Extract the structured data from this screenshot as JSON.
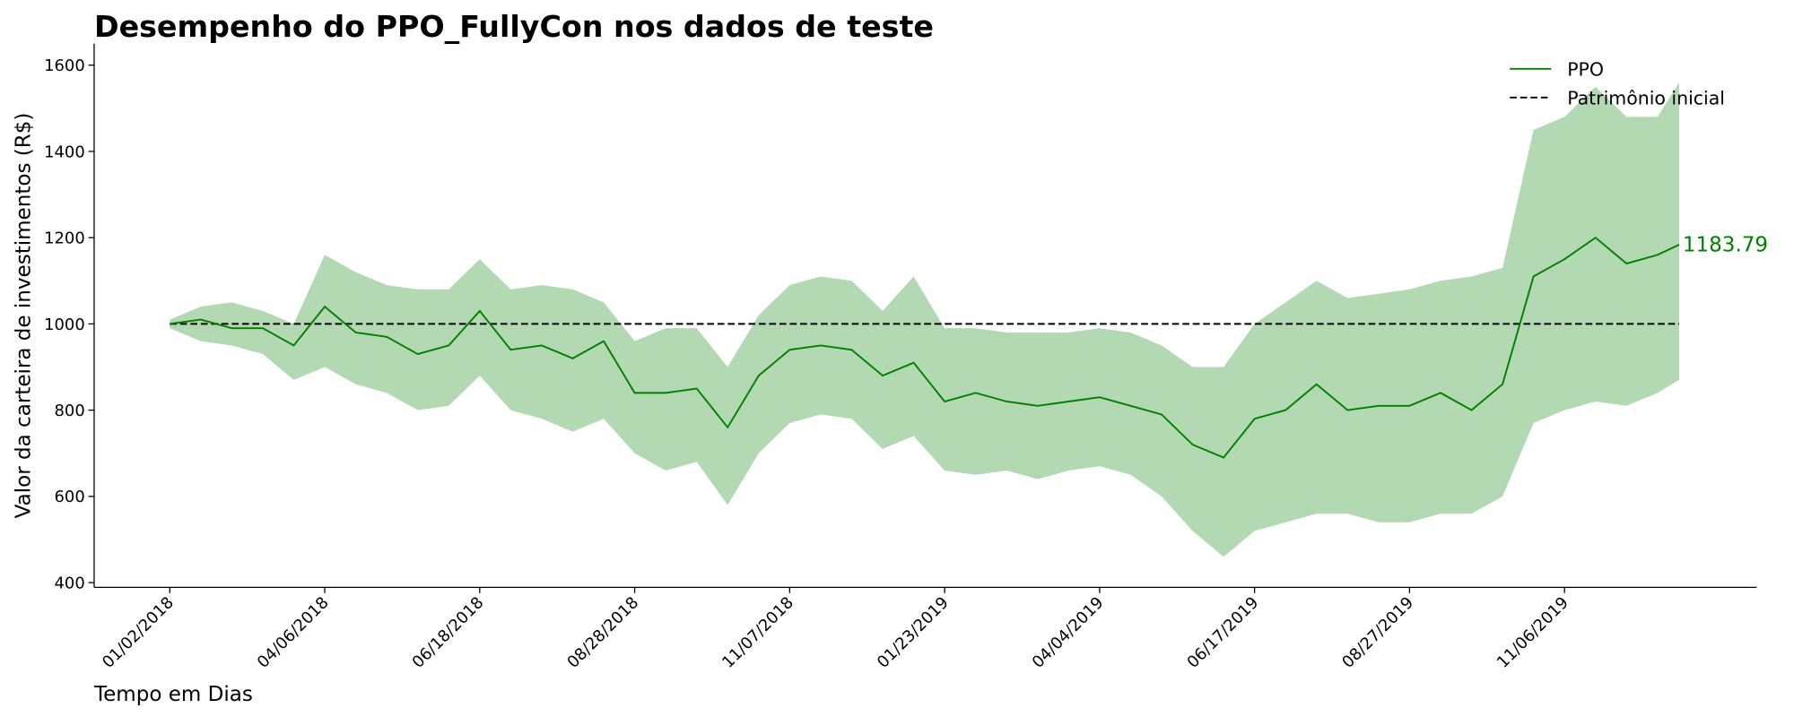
{
  "chart_data": {
    "type": "line",
    "title": "Desempenho do PPO_FullyCon nos dados de teste",
    "xlabel": "Tempo em Dias",
    "ylabel": "Valor da carteira de investimentos (R$)",
    "x": [
      0,
      10,
      20,
      30,
      40,
      50,
      60,
      70,
      80,
      90,
      100,
      110,
      120,
      130,
      140,
      150,
      160,
      170,
      180,
      190,
      200,
      210,
      220,
      230,
      240,
      250,
      260,
      270,
      280,
      290,
      300,
      310,
      320,
      330,
      340,
      350,
      360,
      370,
      380,
      390,
      400,
      410,
      420,
      430,
      440,
      450,
      460,
      470,
      480,
      487
    ],
    "series": [
      {
        "name": "PPO",
        "color": "#008000",
        "values": [
          1000,
          1010,
          990,
          990,
          950,
          1040,
          980,
          970,
          930,
          950,
          1030,
          940,
          950,
          920,
          960,
          840,
          840,
          850,
          760,
          880,
          940,
          950,
          940,
          880,
          910,
          820,
          840,
          820,
          810,
          820,
          830,
          810,
          790,
          720,
          690,
          780,
          800,
          860,
          800,
          810,
          810,
          840,
          800,
          860,
          1110,
          1150,
          1200,
          1140,
          1160,
          1183.79
        ]
      }
    ],
    "band": {
      "color": "#b2d9b2",
      "upper": [
        1010,
        1040,
        1050,
        1030,
        1000,
        1160,
        1120,
        1090,
        1080,
        1080,
        1150,
        1080,
        1090,
        1080,
        1050,
        960,
        990,
        990,
        900,
        1020,
        1090,
        1110,
        1100,
        1030,
        1110,
        990,
        990,
        980,
        980,
        980,
        990,
        980,
        950,
        900,
        900,
        1000,
        1050,
        1100,
        1060,
        1070,
        1080,
        1100,
        1110,
        1130,
        1450,
        1480,
        1550,
        1480,
        1480,
        1560
      ],
      "lower": [
        990,
        960,
        950,
        930,
        870,
        900,
        860,
        840,
        800,
        810,
        880,
        800,
        780,
        750,
        780,
        700,
        660,
        680,
        580,
        700,
        770,
        790,
        780,
        710,
        740,
        660,
        650,
        660,
        640,
        660,
        670,
        650,
        600,
        520,
        460,
        520,
        540,
        560,
        560,
        540,
        540,
        560,
        560,
        600,
        770,
        800,
        820,
        810,
        840,
        870
      ]
    },
    "hline": {
      "name": "Patrimônio inicial",
      "value": 1000,
      "color": "#000000"
    },
    "annotation": "1183.79",
    "xlim": [
      -24.4,
      512
    ],
    "ylim": [
      389,
      1650
    ],
    "xticks": [
      {
        "value": 0,
        "label": "01/02/2018"
      },
      {
        "value": 50,
        "label": "04/06/2018"
      },
      {
        "value": 100,
        "label": "06/18/2018"
      },
      {
        "value": 150,
        "label": "08/28/2018"
      },
      {
        "value": 200,
        "label": "11/07/2018"
      },
      {
        "value": 250,
        "label": "01/23/2019"
      },
      {
        "value": 300,
        "label": "04/04/2019"
      },
      {
        "value": 350,
        "label": "06/17/2019"
      },
      {
        "value": 400,
        "label": "08/27/2019"
      },
      {
        "value": 450,
        "label": "11/06/2019"
      }
    ],
    "yticks": [
      400,
      600,
      800,
      1000,
      1200,
      1400,
      1600
    ],
    "legend": "upper right"
  }
}
